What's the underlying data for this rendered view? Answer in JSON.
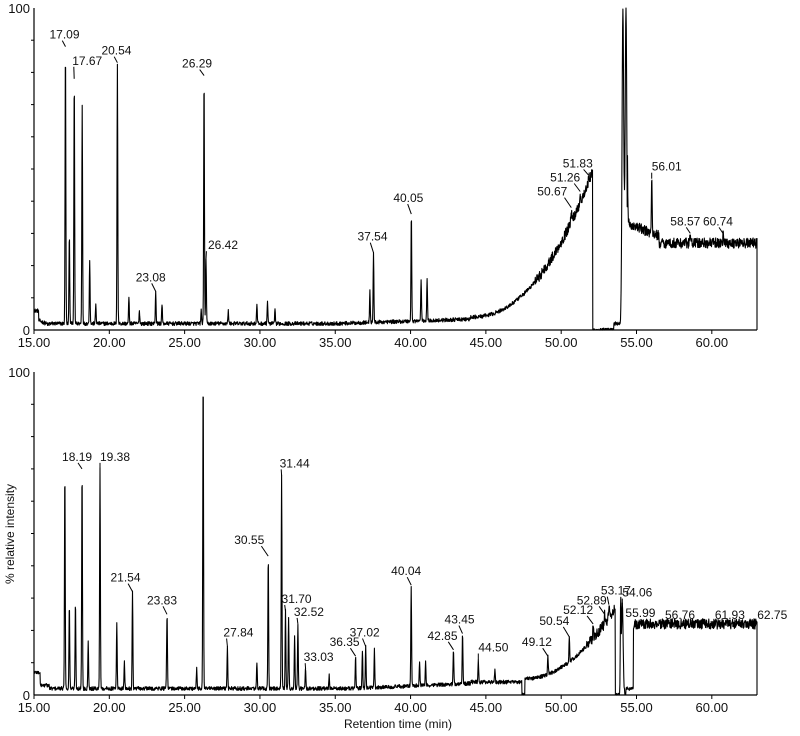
{
  "chart_data": [
    {
      "type": "line",
      "title": "",
      "xlabel": "",
      "ylabel": "",
      "xlim": [
        15,
        63
      ],
      "ylim": [
        0,
        100
      ],
      "xticks": [
        "15.00",
        "20.00",
        "25.00",
        "30.00",
        "35.00",
        "40.00",
        "45.00",
        "50.00",
        "55.00",
        "60.00"
      ],
      "yticks": [
        "0",
        "100"
      ],
      "grid": false,
      "peaks": [
        {
          "label": "17.09",
          "x": 17.09,
          "y": 88
        },
        {
          "label": "17.67",
          "x": 17.67,
          "y": 78
        },
        {
          "label": "20.54",
          "x": 20.54,
          "y": 83
        },
        {
          "label": "23.08",
          "x": 23.08,
          "y": 12
        },
        {
          "label": "26.29",
          "x": 26.29,
          "y": 79
        },
        {
          "label": "26.42",
          "x": 26.42,
          "y": 22
        },
        {
          "label": "37.54",
          "x": 37.54,
          "y": 24
        },
        {
          "label": "40.05",
          "x": 40.05,
          "y": 36
        },
        {
          "label": "50.67",
          "x": 50.67,
          "y": 38
        },
        {
          "label": "51.26",
          "x": 51.26,
          "y": 43
        },
        {
          "label": "51.83",
          "x": 51.83,
          "y": 48
        },
        {
          "label": "56.01",
          "x": 56.01,
          "y": 47
        },
        {
          "label": "58.57",
          "x": 58.57,
          "y": 30
        },
        {
          "label": "60.74",
          "x": 60.74,
          "y": 30
        }
      ]
    },
    {
      "type": "line",
      "title": "",
      "xlabel": "Retention time (min)",
      "ylabel": "% relative intensity",
      "xlim": [
        15,
        63
      ],
      "ylim": [
        0,
        100
      ],
      "xticks": [
        "15.00",
        "20.00",
        "25.00",
        "30.00",
        "35.00",
        "40.00",
        "45.00",
        "50.00",
        "55.00",
        "60.00"
      ],
      "yticks": [
        "0",
        "100"
      ],
      "grid": false,
      "peaks": [
        {
          "label": "18.19",
          "x": 18.19,
          "y": 70
        },
        {
          "label": "19.38",
          "x": 19.38,
          "y": 70
        },
        {
          "label": "21.54",
          "x": 21.54,
          "y": 32
        },
        {
          "label": "23.83",
          "x": 23.83,
          "y": 25
        },
        {
          "label": "27.84",
          "x": 27.84,
          "y": 15
        },
        {
          "label": "30.55",
          "x": 30.55,
          "y": 43
        },
        {
          "label": "31.44",
          "x": 31.44,
          "y": 68
        },
        {
          "label": "31.70",
          "x": 31.7,
          "y": 26
        },
        {
          "label": "32.52",
          "x": 32.52,
          "y": 22
        },
        {
          "label": "33.03",
          "x": 33.03,
          "y": 8
        },
        {
          "label": "36.35",
          "x": 36.35,
          "y": 12
        },
        {
          "label": "37.02",
          "x": 37.02,
          "y": 15
        },
        {
          "label": "40.04",
          "x": 40.04,
          "y": 34
        },
        {
          "label": "42.85",
          "x": 42.85,
          "y": 14
        },
        {
          "label": "43.45",
          "x": 43.45,
          "y": 19
        },
        {
          "label": "44.50",
          "x": 44.5,
          "y": 11
        },
        {
          "label": "49.12",
          "x": 49.12,
          "y": 12
        },
        {
          "label": "50.54",
          "x": 50.54,
          "y": 18
        },
        {
          "label": "52.12",
          "x": 52.12,
          "y": 22
        },
        {
          "label": "52.89",
          "x": 52.89,
          "y": 25
        },
        {
          "label": "53.17",
          "x": 53.17,
          "y": 28
        },
        {
          "label": "54.06",
          "x": 54.06,
          "y": 28
        },
        {
          "label": "55.99",
          "x": 55.99,
          "y": 21
        },
        {
          "label": "56.76",
          "x": 56.76,
          "y": 21
        },
        {
          "label": "61.93",
          "x": 61.93,
          "y": 21
        },
        {
          "label": "62.75",
          "x": 62.75,
          "y": 21
        }
      ]
    }
  ]
}
